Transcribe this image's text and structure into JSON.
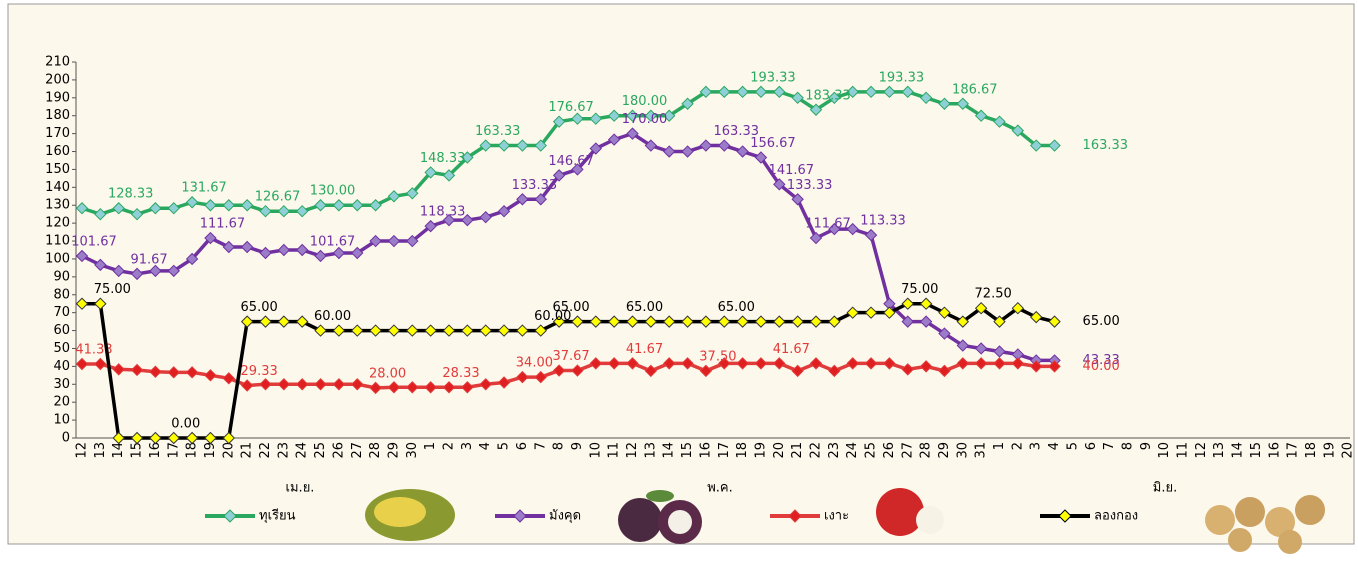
{
  "chart_data": {
    "type": "line",
    "categories": [
      "12",
      "13",
      "14",
      "15",
      "16",
      "17",
      "18",
      "19",
      "20",
      "21",
      "22",
      "23",
      "24",
      "25",
      "26",
      "27",
      "28",
      "29",
      "30",
      "1",
      "2",
      "3",
      "4",
      "5",
      "6",
      "7",
      "8",
      "9",
      "10",
      "11",
      "12",
      "13",
      "14",
      "15",
      "16",
      "17",
      "18",
      "19",
      "20",
      "21",
      "22",
      "23",
      "24",
      "25",
      "26",
      "27",
      "28",
      "29",
      "30",
      "31",
      "1",
      "2",
      "3",
      "4",
      "5",
      "6",
      "7",
      "8",
      "9",
      "10",
      "11",
      "12",
      "13",
      "14",
      "15",
      "16",
      "17",
      "18",
      "19",
      "20"
    ],
    "month_labels": [
      "เม.ย.",
      "พ.ค.",
      "มิ.ย."
    ],
    "ylim": [
      0,
      210
    ],
    "yticks": [
      0,
      10,
      20,
      30,
      40,
      50,
      60,
      70,
      80,
      90,
      100,
      110,
      120,
      130,
      140,
      150,
      160,
      170,
      180,
      190,
      200,
      210
    ],
    "series": [
      {
        "name": "ทุเรียน",
        "color": "#2aa860",
        "marker_color": "#8fd0d8",
        "values": [
          128.33,
          125,
          128.33,
          125,
          128.33,
          128.33,
          131.67,
          130,
          130,
          130,
          126.67,
          126.67,
          126.67,
          130,
          130,
          130,
          130,
          135,
          136.67,
          148.33,
          146.67,
          156.67,
          163.33,
          163.33,
          163.33,
          163.33,
          176.67,
          178.33,
          178.33,
          180,
          180,
          180,
          180,
          186.67,
          193.33,
          193.33,
          193.33,
          193.33,
          193.33,
          190,
          183.33,
          190,
          193.33,
          193.33,
          193.33,
          193.33,
          190,
          186.67,
          186.67,
          180,
          176.67,
          171.67,
          163.33,
          163.33,
          null,
          null,
          null,
          null,
          null,
          null,
          null,
          null,
          null,
          null,
          null,
          null,
          null,
          null,
          null,
          null
        ],
        "value_labels": [
          null,
          null,
          "128.33",
          null,
          null,
          null,
          "131.67",
          null,
          null,
          null,
          "126.67",
          null,
          null,
          "130.00",
          null,
          null,
          null,
          null,
          null,
          "148.33",
          null,
          null,
          "163.33",
          null,
          null,
          null,
          "176.67",
          null,
          null,
          null,
          "180.00",
          null,
          null,
          null,
          null,
          null,
          null,
          "193.33",
          null,
          null,
          "183.33",
          null,
          null,
          null,
          "193.33",
          null,
          null,
          null,
          "186.67",
          null,
          null,
          null,
          null,
          "163.33",
          null,
          null,
          null,
          null,
          null,
          null,
          null,
          null,
          null,
          null,
          null,
          null,
          null,
          null,
          null,
          null
        ]
      },
      {
        "name": "มังคุด",
        "color": "#7030a0",
        "marker_color": "#9a7cc8",
        "values": [
          101.67,
          96.67,
          93.33,
          91.67,
          93.33,
          93.33,
          100,
          111.67,
          106.67,
          106.67,
          103.33,
          105,
          105,
          101.67,
          103.33,
          103.33,
          110,
          110,
          110,
          118.33,
          121.67,
          121.67,
          123.33,
          126.67,
          133.33,
          133.33,
          146.67,
          150,
          161.67,
          166.67,
          170,
          163.33,
          160,
          160,
          163.33,
          163.33,
          160,
          156.67,
          141.67,
          133.33,
          111.67,
          116.67,
          116.67,
          113.33,
          75,
          65,
          65,
          58.33,
          51.67,
          50,
          48.33,
          46.67,
          43.33,
          43.33,
          null,
          null,
          null,
          null,
          null,
          null,
          null,
          null,
          null,
          null,
          null,
          null,
          null,
          null,
          null,
          null
        ],
        "value_labels": [
          "101.67",
          null,
          null,
          "91.67",
          null,
          null,
          null,
          "111.67",
          null,
          null,
          null,
          null,
          null,
          "101.67",
          null,
          null,
          null,
          null,
          null,
          "118.33",
          null,
          null,
          null,
          null,
          "133.33",
          null,
          "146.67",
          null,
          null,
          null,
          "170.00",
          null,
          null,
          null,
          null,
          "163.33",
          null,
          "156.67",
          "141.67",
          "133.33",
          "111.67",
          null,
          null,
          "113.33",
          null,
          null,
          null,
          null,
          null,
          null,
          null,
          null,
          null,
          "43.33",
          null,
          null,
          null,
          null,
          null,
          null,
          null,
          null,
          null,
          null,
          null,
          null,
          null,
          null,
          null,
          null
        ]
      },
      {
        "name": "เงาะ",
        "color": "#e03c3c",
        "marker_color": "#e02020",
        "values": [
          41.33,
          41.33,
          38.33,
          38,
          37,
          36.67,
          36.67,
          35,
          33.33,
          29.33,
          30,
          30,
          30,
          30,
          30,
          30,
          28,
          28.33,
          28.33,
          28.33,
          28.33,
          28.33,
          30,
          31,
          34,
          34,
          37.67,
          37.67,
          41.67,
          41.67,
          41.67,
          37.5,
          41.67,
          41.67,
          37.5,
          41.67,
          41.67,
          41.67,
          41.67,
          37.5,
          41.67,
          37.5,
          41.67,
          41.67,
          41.67,
          38.33,
          40,
          37.5,
          41.67,
          41.67,
          41.67,
          41.67,
          40,
          40,
          null,
          null,
          null,
          null,
          null,
          null,
          null,
          null,
          null,
          null,
          null,
          null,
          null,
          null,
          null,
          null
        ],
        "value_labels": [
          "41.33",
          null,
          null,
          null,
          null,
          null,
          null,
          null,
          null,
          "29.33",
          null,
          null,
          null,
          null,
          null,
          null,
          "28.00",
          null,
          null,
          null,
          "28.33",
          null,
          null,
          null,
          "34.00",
          null,
          "37.67",
          null,
          null,
          null,
          "41.67",
          null,
          null,
          null,
          "37.50",
          null,
          null,
          null,
          "41.67",
          null,
          null,
          null,
          null,
          null,
          null,
          null,
          null,
          null,
          null,
          null,
          null,
          null,
          null,
          "40.00",
          null,
          null,
          null,
          null,
          null,
          null,
          null,
          null,
          null,
          null,
          null,
          null,
          null,
          null,
          null,
          null
        ]
      },
      {
        "name": "ลองกอง",
        "color": "#000000",
        "marker_color": "#ffff00",
        "values": [
          75,
          75,
          0,
          0,
          0,
          0,
          0,
          0,
          0,
          65,
          65,
          65,
          65,
          60,
          60,
          60,
          60,
          60,
          60,
          60,
          60,
          60,
          60,
          60,
          60,
          60,
          65,
          65,
          65,
          65,
          65,
          65,
          65,
          65,
          65,
          65,
          65,
          65,
          65,
          65,
          65,
          65,
          70,
          70,
          70,
          75,
          75,
          70,
          65,
          72.5,
          65,
          72.5,
          67.5,
          65,
          null,
          null,
          null,
          null,
          null,
          null,
          null,
          null,
          null,
          null,
          null,
          null,
          null,
          null,
          null,
          null
        ],
        "value_labels": [
          null,
          "75.00",
          null,
          null,
          null,
          "0.00",
          null,
          null,
          null,
          "65.00",
          null,
          null,
          null,
          "60.00",
          null,
          null,
          null,
          null,
          null,
          null,
          null,
          null,
          null,
          null,
          null,
          "60.00",
          "65.00",
          null,
          null,
          null,
          "65.00",
          null,
          null,
          null,
          null,
          "65.00",
          null,
          null,
          null,
          null,
          null,
          null,
          null,
          null,
          null,
          "75.00",
          null,
          null,
          null,
          "72.50",
          null,
          null,
          null,
          "65.00",
          null,
          null,
          null,
          null,
          null,
          null,
          null,
          null,
          null,
          null,
          null,
          null,
          null,
          null,
          null,
          null
        ]
      }
    ]
  }
}
